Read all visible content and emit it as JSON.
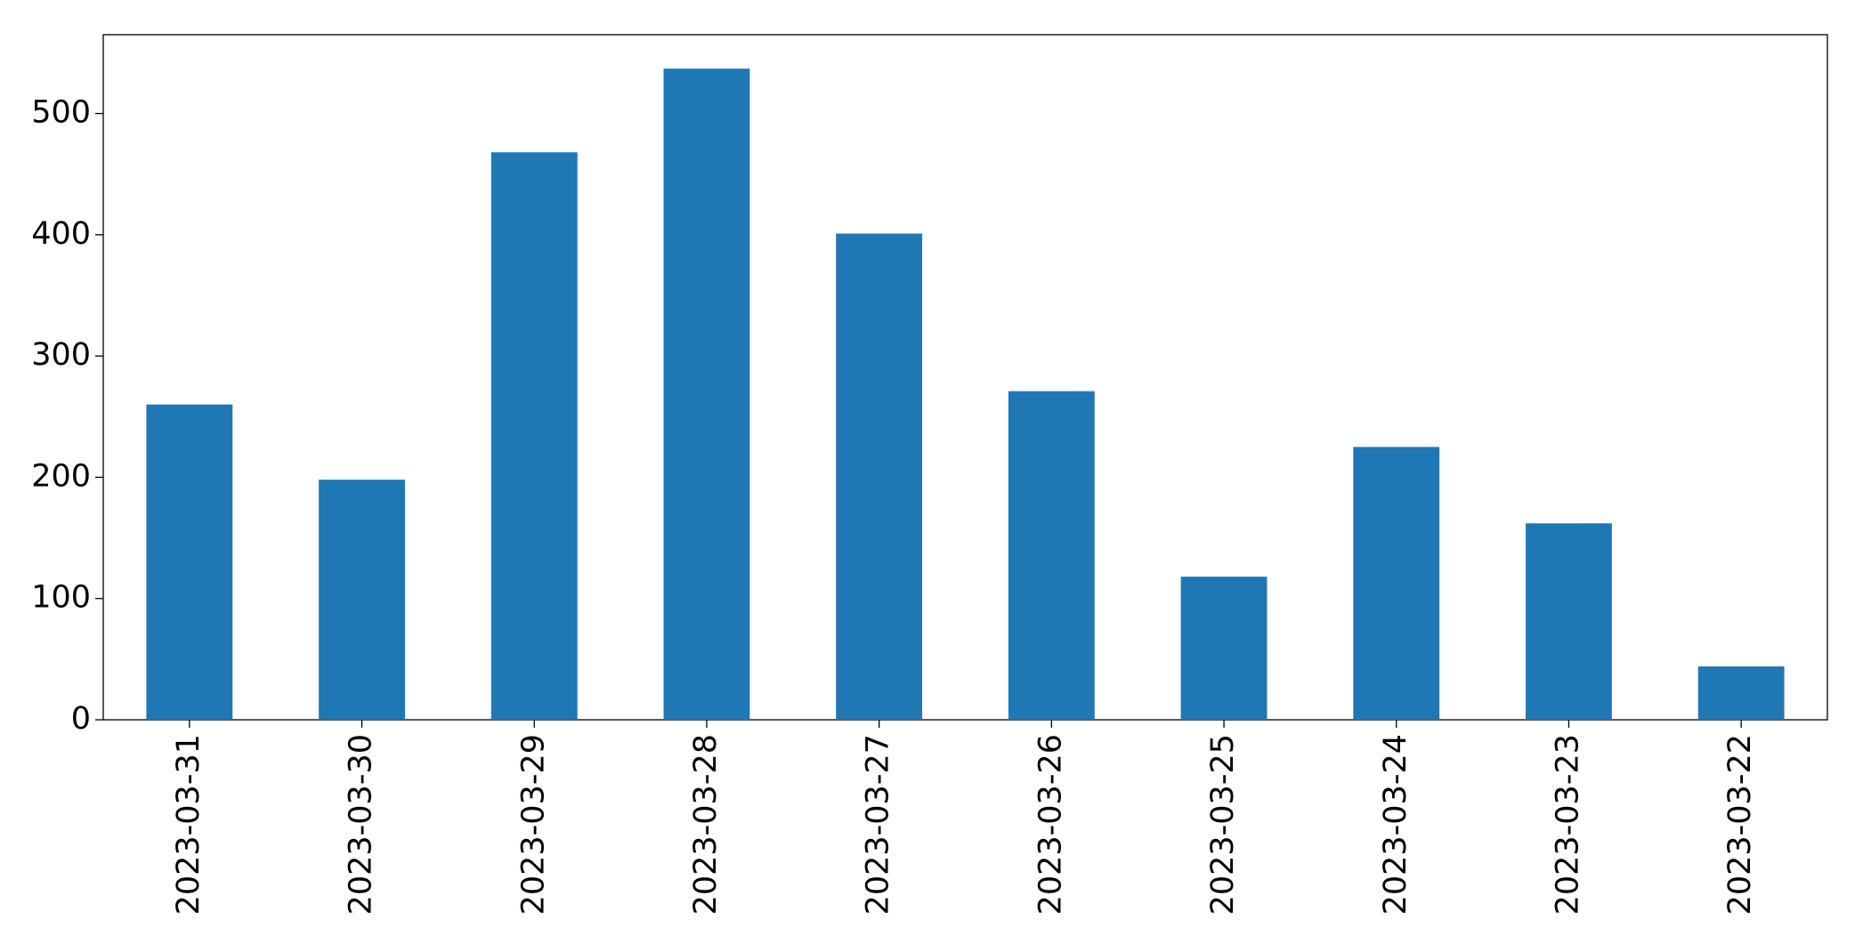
{
  "chart_data": {
    "type": "bar",
    "categories": [
      "2023-03-31",
      "2023-03-30",
      "2023-03-29",
      "2023-03-28",
      "2023-03-27",
      "2023-03-26",
      "2023-03-25",
      "2023-03-24",
      "2023-03-23",
      "2023-03-22"
    ],
    "values": [
      260,
      198,
      468,
      537,
      401,
      271,
      118,
      225,
      162,
      44
    ],
    "color": "#1f77b4",
    "ylim": [
      0,
      565
    ],
    "yticks": [
      0,
      100,
      200,
      300,
      400,
      500
    ],
    "grid": false
  }
}
